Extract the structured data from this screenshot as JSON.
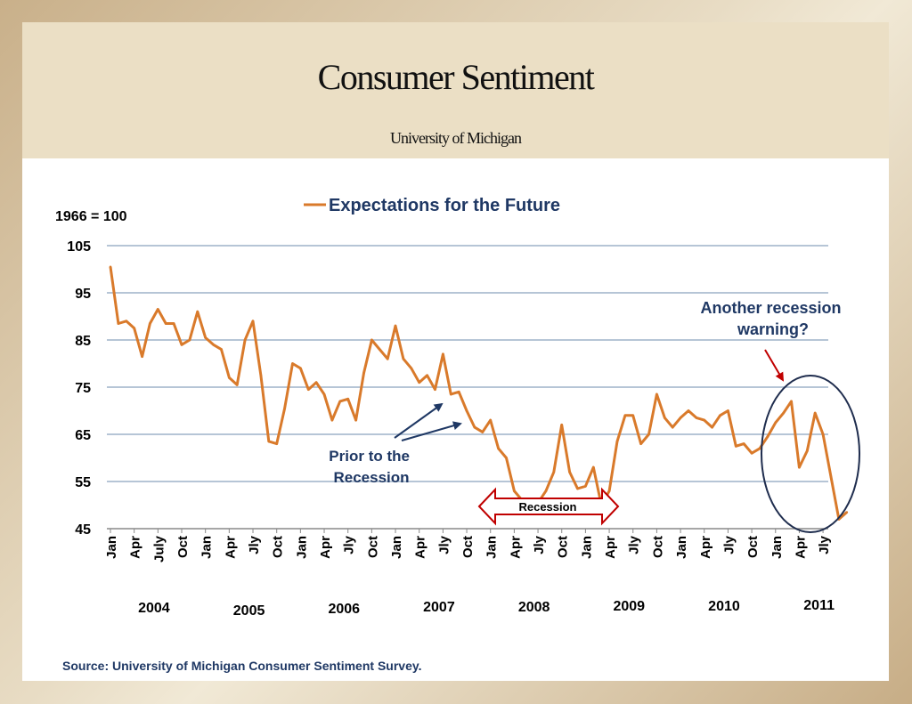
{
  "slide": {
    "title": "Consumer Sentiment",
    "subtitle": "University of Michigan",
    "source": "Source: University of Michigan Consumer Sentiment Survey."
  },
  "colors": {
    "line": "#d97a2b",
    "grid": "#9eb2c8",
    "arrow_blue": "#1f3864",
    "arrow_red": "#c00000",
    "recession_box": "#c00000",
    "ellipse": "#1f2d4e",
    "legend_text": "#1f3864",
    "annotation_text": "#1f3864"
  },
  "chart_data": {
    "type": "line",
    "legend": "Expectations for the Future",
    "unit_note": "1966 = 100",
    "ylim": [
      45,
      105
    ],
    "yticks": [
      45,
      55,
      65,
      75,
      85,
      95,
      105
    ],
    "grid": true,
    "month_labels": [
      "Jan",
      "Apr",
      "July",
      "Oct",
      "Jan",
      "Apr",
      "Jly",
      "Oct",
      "Jan",
      "Apr",
      "Jly",
      "Oct",
      "Jan",
      "Apr",
      "Jly",
      "Oct",
      "Jan",
      "Apr",
      "Jly",
      "Oct",
      "Jan",
      "Apr",
      "Jly",
      "Oct",
      "Jan",
      "Apr",
      "Jly",
      "Oct",
      "Jan",
      "Apr",
      "Jly"
    ],
    "year_labels": [
      "2004",
      "2005",
      "2006",
      "2007",
      "2008",
      "2009",
      "2010",
      "2011"
    ],
    "series": [
      {
        "name": "Expectations for the Future",
        "values": [
          100.5,
          88.5,
          89,
          87.5,
          81.5,
          88.5,
          91.5,
          88.5,
          88.5,
          84,
          85,
          91,
          85.5,
          84,
          83,
          77,
          75.5,
          85,
          89,
          77.5,
          63.5,
          63,
          70.5,
          80,
          79,
          74.5,
          76,
          73.5,
          68,
          72,
          72.5,
          68,
          78,
          85,
          83,
          81,
          88,
          81,
          79,
          76,
          77.5,
          74.5,
          82,
          73.5,
          74,
          70,
          66.5,
          65.5,
          68,
          62,
          60,
          53,
          51,
          50,
          50.5,
          53,
          57,
          67,
          57,
          53.5,
          54,
          58,
          50,
          53,
          63.5,
          69,
          69,
          63,
          65,
          73.5,
          68.5,
          66.5,
          68.5,
          70,
          68.5,
          68,
          66.5,
          69,
          70,
          62.5,
          63,
          61,
          62,
          64.5,
          67.5,
          69.5,
          72,
          58,
          61.5,
          69.5,
          65,
          56,
          47,
          48.5
        ]
      }
    ],
    "annotations": {
      "prior": "Prior to the Recession",
      "recession": "Recession",
      "warning": "Another recession warning?"
    }
  }
}
